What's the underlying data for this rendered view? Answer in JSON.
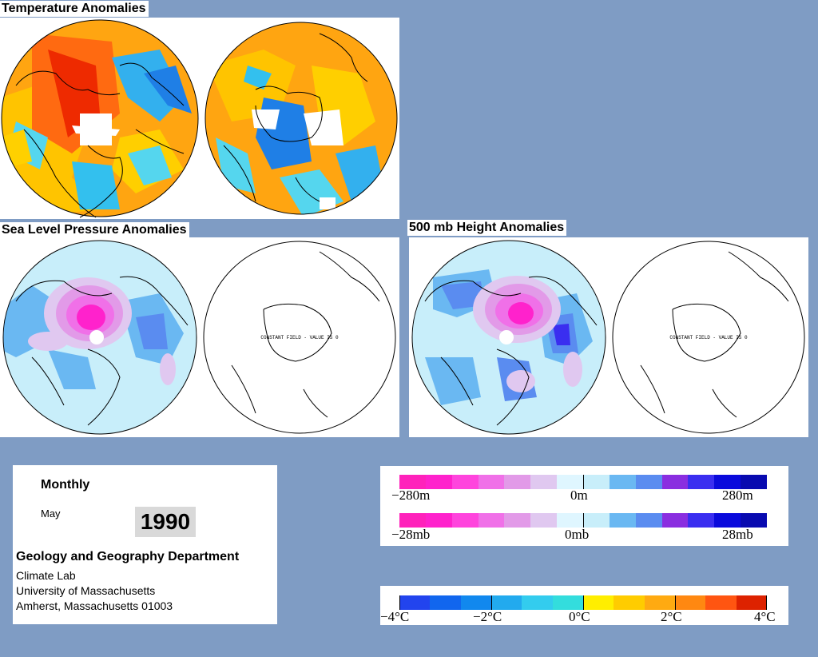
{
  "sections": {
    "temperature": "Temperature Anomalies",
    "slp": "Sea Level Pressure Anomalies",
    "height": "500 mb Height Anomalies"
  },
  "map_annotation": "CONSTANT FIELD - VALUE IS 0",
  "info": {
    "period": "Monthly",
    "month": "May",
    "year": "1990",
    "department": "Geology and Geography Department",
    "lab": "Climate Lab",
    "university": "University of Massachusetts",
    "address": "Amherst, Massachusetts 01003"
  },
  "legends": {
    "height": {
      "min": "−280m",
      "mid": "0m",
      "max": "280m"
    },
    "pressure": {
      "min": "−28mb",
      "mid": "0mb",
      "max": "28mb"
    },
    "temperature": [
      "−4°C",
      "−2°C",
      "0°C",
      "2°C",
      "4°C"
    ]
  },
  "colors": {
    "background": "#7f9cc4",
    "anomaly_scale": [
      "#ff22bb",
      "#ff22cc",
      "#ff44dd",
      "#f070e8",
      "#e29ae8",
      "#e0c8f0",
      "#dff6ff",
      "#c8eefa",
      "#6ab8f2",
      "#5a8cf0",
      "#8a2ee0",
      "#3a2ef0",
      "#0a0adc",
      "#080ab0"
    ],
    "temperature_scale": [
      "#2244ee",
      "#1166ee",
      "#1188ee",
      "#22aaee",
      "#33ccee",
      "#33dddd",
      "#ffee00",
      "#ffcc00",
      "#ffaa11",
      "#ff8811",
      "#ff5511",
      "#dd2200"
    ]
  }
}
